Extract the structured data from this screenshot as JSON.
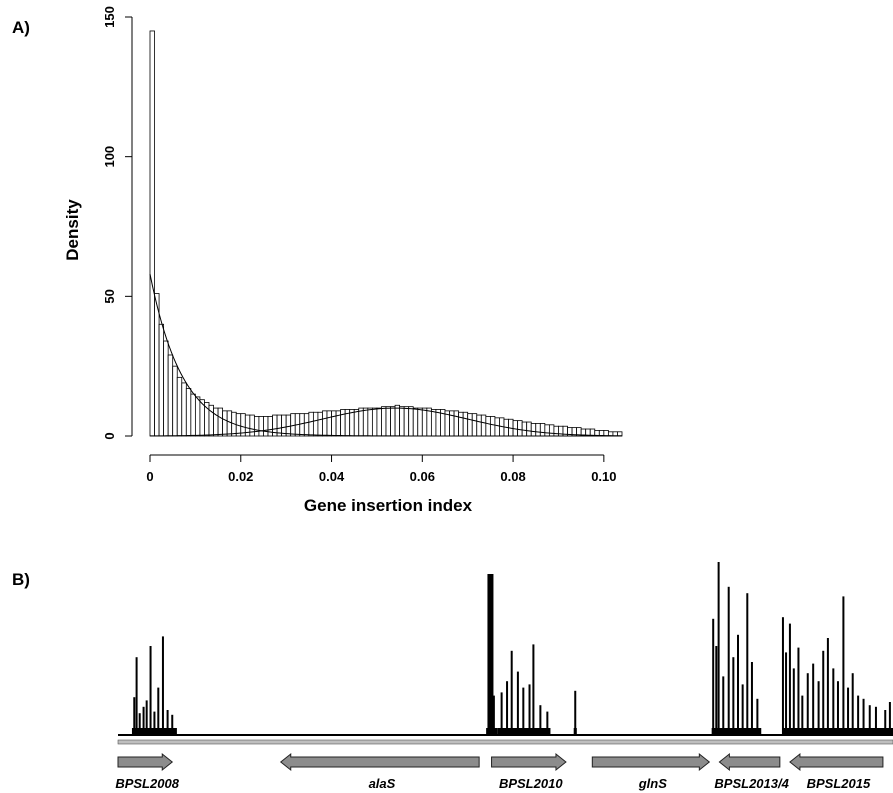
{
  "panels": {
    "a_label": "A)",
    "b_label": "B)"
  },
  "chart_data": [
    {
      "type": "bar",
      "panel": "A)",
      "xlabel": "Gene insertion index",
      "ylabel": "Density",
      "xlim": [
        0,
        0.104
      ],
      "ylim": [
        0,
        150
      ],
      "x_ticks": [
        "0",
        "0.02",
        "0.04",
        "0.06",
        "0.08",
        "0.10"
      ],
      "y_ticks": [
        "0",
        "50",
        "100",
        "150"
      ],
      "bin_width": 0.001,
      "values": [
        145,
        51,
        40,
        34,
        29,
        25,
        21,
        19,
        17,
        15,
        14,
        13,
        12,
        11,
        10,
        10,
        9,
        9,
        8.5,
        8,
        8,
        7.5,
        7.5,
        7,
        7,
        7,
        7,
        7.5,
        7.5,
        7.5,
        7.5,
        8,
        8,
        8,
        8,
        8.5,
        8.5,
        8.5,
        9,
        9,
        9,
        9,
        9.5,
        9.5,
        9.5,
        9.5,
        10,
        10,
        10,
        10,
        10,
        10.5,
        10.5,
        10.5,
        11,
        10.5,
        10.5,
        10.5,
        10,
        10,
        10,
        10,
        9.5,
        9.5,
        9.5,
        9,
        9,
        9,
        8.5,
        8.5,
        8,
        8,
        7.5,
        7.5,
        7,
        7,
        6.5,
        6.5,
        6,
        6,
        5.5,
        5.5,
        5,
        5,
        4.5,
        4.5,
        4.5,
        4,
        4,
        3.5,
        3.5,
        3.5,
        3,
        3,
        3,
        2.5,
        2.5,
        2.5,
        2,
        2,
        2,
        1.5,
        1.5,
        1.5
      ],
      "curves": [
        {
          "kind": "exponential",
          "amplitude": 58,
          "rate": 140
        },
        {
          "kind": "normal",
          "amplitude": 10,
          "mean": 0.054,
          "sd": 0.016
        }
      ]
    },
    {
      "type": "bar",
      "panel": "B)",
      "note_unlabeled_axis": "",
      "ylim": [
        0,
        1
      ],
      "tracks": [
        {
          "x0": 0.018,
          "x1": 0.076,
          "peaks": [
            [
              0.021,
              0.23
            ],
            [
              0.024,
              0.48
            ],
            [
              0.028,
              0.13
            ],
            [
              0.033,
              0.17
            ],
            [
              0.037,
              0.21
            ],
            [
              0.042,
              0.55
            ],
            [
              0.047,
              0.14
            ],
            [
              0.052,
              0.29
            ],
            [
              0.058,
              0.61
            ],
            [
              0.064,
              0.15
            ],
            [
              0.07,
              0.12
            ]
          ]
        },
        {
          "x0": 0.475,
          "x1": 0.49,
          "peaks": [
            [
              0.478,
              1.0
            ],
            [
              0.485,
              0.24
            ]
          ]
        },
        {
          "x0": 0.49,
          "x1": 0.558,
          "peaks": [
            [
              0.495,
              0.26
            ],
            [
              0.502,
              0.33
            ],
            [
              0.508,
              0.52
            ],
            [
              0.516,
              0.39
            ],
            [
              0.523,
              0.29
            ],
            [
              0.531,
              0.31
            ],
            [
              0.536,
              0.56
            ],
            [
              0.545,
              0.18
            ],
            [
              0.554,
              0.14
            ]
          ]
        },
        {
          "x0": 0.588,
          "x1": 0.592,
          "peaks": [
            [
              0.59,
              0.27
            ]
          ]
        },
        {
          "x0": 0.766,
          "x1": 0.83,
          "peaks": [
            [
              0.768,
              0.72
            ],
            [
              0.772,
              0.55
            ],
            [
              0.775,
              1.1
            ],
            [
              0.781,
              0.36
            ],
            [
              0.788,
              0.92
            ],
            [
              0.794,
              0.48
            ],
            [
              0.8,
              0.62
            ],
            [
              0.806,
              0.31
            ],
            [
              0.812,
              0.88
            ],
            [
              0.818,
              0.45
            ],
            [
              0.825,
              0.22
            ]
          ]
        },
        {
          "x0": 0.857,
          "x1": 1.0,
          "peaks": [
            [
              0.858,
              0.73
            ],
            [
              0.862,
              0.51
            ],
            [
              0.867,
              0.69
            ],
            [
              0.872,
              0.41
            ],
            [
              0.878,
              0.54
            ],
            [
              0.883,
              0.24
            ],
            [
              0.89,
              0.38
            ],
            [
              0.897,
              0.44
            ],
            [
              0.904,
              0.33
            ],
            [
              0.91,
              0.52
            ],
            [
              0.916,
              0.6
            ],
            [
              0.923,
              0.41
            ],
            [
              0.929,
              0.33
            ],
            [
              0.936,
              0.86
            ],
            [
              0.942,
              0.29
            ],
            [
              0.948,
              0.38
            ],
            [
              0.955,
              0.24
            ],
            [
              0.962,
              0.22
            ],
            [
              0.97,
              0.18
            ],
            [
              0.978,
              0.17
            ],
            [
              0.99,
              0.15
            ],
            [
              0.996,
              0.2
            ]
          ]
        }
      ],
      "genes": [
        {
          "name": "BPSL2008",
          "x0": 0.0,
          "x1": 0.07,
          "dir": "right"
        },
        {
          "name": "alaS",
          "x0": 0.21,
          "x1": 0.466,
          "dir": "left"
        },
        {
          "name": "BPSL2010",
          "x0": 0.482,
          "x1": 0.578,
          "dir": "right"
        },
        {
          "name": "glnS",
          "x0": 0.612,
          "x1": 0.763,
          "dir": "right"
        },
        {
          "name": "BPSL2013/4",
          "x0": 0.776,
          "x1": 0.854,
          "dir": "left"
        },
        {
          "name": "BPSL2015",
          "x0": 0.867,
          "x1": 0.987,
          "dir": "left"
        }
      ]
    }
  ]
}
